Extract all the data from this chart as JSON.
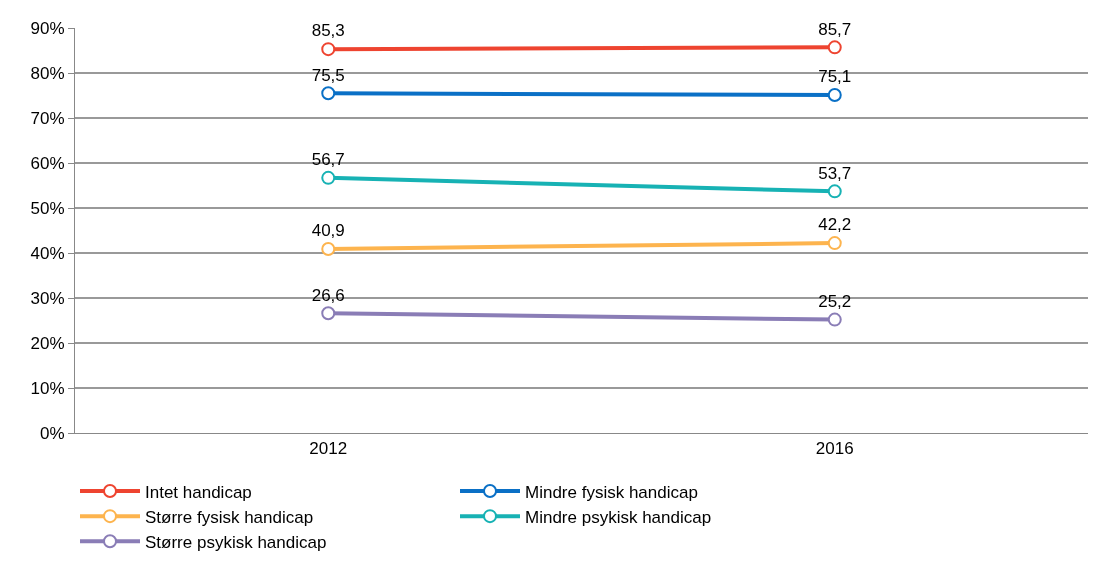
{
  "chart_data": {
    "type": "line",
    "categories": [
      "2012",
      "2016"
    ],
    "series": [
      {
        "name": "Intet handicap",
        "color": "#ee4430",
        "values": [
          85.3,
          85.7
        ],
        "value_labels": [
          "85,3",
          "85,7"
        ]
      },
      {
        "name": "Mindre fysisk handicap",
        "color": "#0a70c6",
        "values": [
          75.5,
          75.1
        ],
        "value_labels": [
          "75,5",
          "75,1"
        ]
      },
      {
        "name": "Større fysisk handicap",
        "color": "#fdb44e",
        "values": [
          40.9,
          42.2
        ],
        "value_labels": [
          "40,9",
          "42,2"
        ]
      },
      {
        "name": "Mindre psykisk handicap",
        "color": "#17b2b4",
        "values": [
          56.7,
          53.7
        ],
        "value_labels": [
          "56,7",
          "53,7"
        ]
      },
      {
        "name": "Større psykisk handicap",
        "color": "#8a7db6",
        "values": [
          26.6,
          25.2
        ],
        "value_labels": [
          "26,6",
          "25,2"
        ]
      }
    ],
    "ylim": [
      0,
      90
    ],
    "yticks": [
      {
        "value": 0,
        "label": "0%"
      },
      {
        "value": 10,
        "label": "10%"
      },
      {
        "value": 20,
        "label": "20%"
      },
      {
        "value": 30,
        "label": "30%"
      },
      {
        "value": 40,
        "label": "40%"
      },
      {
        "value": 50,
        "label": "50%"
      },
      {
        "value": 60,
        "label": "60%"
      },
      {
        "value": 70,
        "label": "70%"
      },
      {
        "value": 80,
        "label": "80%"
      },
      {
        "value": 90,
        "label": "90%"
      }
    ],
    "grid": "y",
    "legend": "bottom",
    "marker": "circle",
    "line_style": "solid"
  }
}
